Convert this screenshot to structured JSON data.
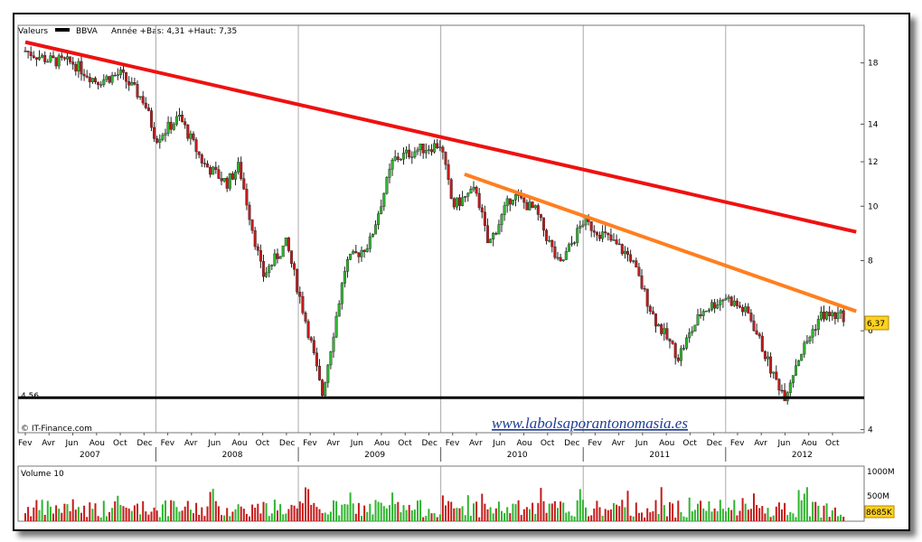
{
  "chart_data": {
    "type": "candlestick",
    "title_parts": {
      "prefix": "Valeurs",
      "ticker": "BBVA",
      "range": "Année +Bas: 4,31 +Haut: 7,35"
    },
    "y_ticks": [
      "4",
      "6",
      "8",
      "10",
      "12",
      "14",
      "18"
    ],
    "y_tick_values": [
      4,
      6,
      8,
      10,
      12,
      14,
      18
    ],
    "y_scale": "log",
    "ylim": [
      3.95,
      21.0
    ],
    "months": [
      "Fev",
      "Avr",
      "Jun",
      "Aou",
      "Oct",
      "Dec",
      "Fev",
      "Avr",
      "Jun",
      "Aou",
      "Oct",
      "Dec",
      "Fev",
      "Avr",
      "Jun",
      "Aou",
      "Oct",
      "Dec",
      "Fev",
      "Avr",
      "Jun",
      "Aou",
      "Oct",
      "Dec",
      "Fev",
      "Avr",
      "Jun",
      "Aou",
      "Oct",
      "Dec",
      "Fev",
      "Avr",
      "Jun",
      "Aou",
      "Oct"
    ],
    "years": [
      "2007",
      "2008",
      "2009",
      "2010",
      "2011",
      "2012"
    ],
    "x_range": [
      "2007-02",
      "2012-11"
    ],
    "price_path": [
      {
        "date": "2007-02",
        "price": 18.9
      },
      {
        "date": "2007-04",
        "price": 18.2
      },
      {
        "date": "2007-06",
        "price": 18.0
      },
      {
        "date": "2007-08",
        "price": 16.7
      },
      {
        "date": "2007-10",
        "price": 17.2
      },
      {
        "date": "2007-12",
        "price": 15.4
      },
      {
        "date": "2008-01",
        "price": 13.2
      },
      {
        "date": "2008-03",
        "price": 14.4
      },
      {
        "date": "2008-05",
        "price": 11.9
      },
      {
        "date": "2008-07",
        "price": 11.0
      },
      {
        "date": "2008-08",
        "price": 11.8
      },
      {
        "date": "2008-10",
        "price": 7.5
      },
      {
        "date": "2008-12",
        "price": 8.6
      },
      {
        "date": "2009-02",
        "price": 5.8
      },
      {
        "date": "2009-03",
        "price": 4.6
      },
      {
        "date": "2009-05",
        "price": 7.9
      },
      {
        "date": "2009-07",
        "price": 8.6
      },
      {
        "date": "2009-09",
        "price": 12.1
      },
      {
        "date": "2009-11",
        "price": 12.6
      },
      {
        "date": "2010-01",
        "price": 12.9
      },
      {
        "date": "2010-02",
        "price": 10.0
      },
      {
        "date": "2010-04",
        "price": 10.7
      },
      {
        "date": "2010-05",
        "price": 8.5
      },
      {
        "date": "2010-07",
        "price": 10.5
      },
      {
        "date": "2010-09",
        "price": 9.8
      },
      {
        "date": "2010-11",
        "price": 7.8
      },
      {
        "date": "2011-01",
        "price": 9.4
      },
      {
        "date": "2011-03",
        "price": 8.8
      },
      {
        "date": "2011-05",
        "price": 8.1
      },
      {
        "date": "2011-07",
        "price": 6.3
      },
      {
        "date": "2011-09",
        "price": 5.4
      },
      {
        "date": "2011-11",
        "price": 6.5
      },
      {
        "date": "2012-01",
        "price": 6.9
      },
      {
        "date": "2012-03",
        "price": 6.4
      },
      {
        "date": "2012-05",
        "price": 5.0
      },
      {
        "date": "2012-06",
        "price": 4.6
      },
      {
        "date": "2012-07",
        "price": 5.3
      },
      {
        "date": "2012-09",
        "price": 6.4
      },
      {
        "date": "2012-11",
        "price": 6.37
      }
    ],
    "trendlines": [
      {
        "color": "#ee1111",
        "from": {
          "date": "2007-02",
          "price": 19.6
        },
        "to": {
          "date": "2012-12",
          "price": 9.0
        }
      },
      {
        "color": "#ff7f1f",
        "from": {
          "date": "2010-03",
          "price": 11.4
        },
        "to": {
          "date": "2012-12",
          "price": 6.5
        }
      }
    ],
    "support": {
      "label": "4,56",
      "value": 4.56,
      "color": "#000000"
    },
    "last_price": "6,37",
    "volume": {
      "label": "Volume 10",
      "ticks": [
        "1000M",
        "500M"
      ],
      "last": "8685K"
    }
  },
  "footer": {
    "source": "© IT-Finance.com",
    "website": "www.labolsaporantonomasia.es"
  }
}
